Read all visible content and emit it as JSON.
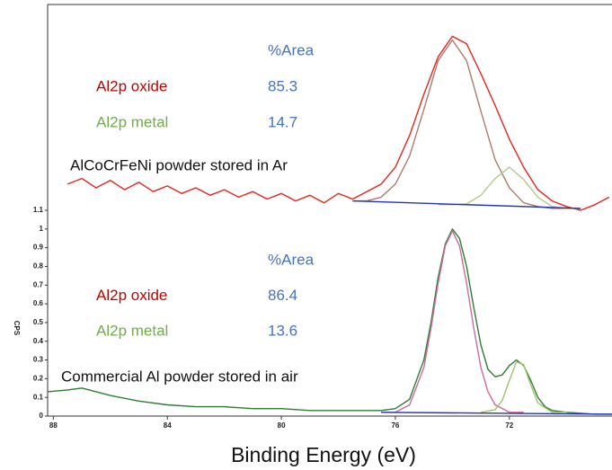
{
  "chart_data": {
    "type": "line",
    "xlabel": "Binding Energy (eV)",
    "ylabel": "CPS",
    "xlim": [
      88.2,
      68.4
    ],
    "xticks": [
      88,
      84,
      80,
      76,
      72
    ],
    "ylim": [
      0,
      2.2
    ],
    "yticks": [
      0,
      0.1,
      0.2,
      0.3,
      0.4,
      0.5,
      0.6,
      0.7,
      0.8,
      0.9,
      1,
      1.1
    ],
    "series": [
      {
        "color": "#e8241c",
        "x": [
          87.5,
          87,
          86.5,
          86,
          85.5,
          85,
          84.5,
          84,
          83.5,
          83,
          82.5,
          82,
          81.5,
          81,
          80.5,
          80,
          79.5,
          79,
          78.5,
          78,
          77.5,
          77,
          76.5,
          76,
          75.5,
          75,
          74.5,
          74,
          73.5,
          73,
          72.5,
          72,
          71.5,
          71,
          70.5,
          70,
          69.5,
          69,
          68.5
        ],
        "values": [
          1.24,
          1.27,
          1.22,
          1.26,
          1.21,
          1.25,
          1.2,
          1.23,
          1.19,
          1.22,
          1.18,
          1.21,
          1.17,
          1.2,
          1.16,
          1.19,
          1.15,
          1.18,
          1.14,
          1.19,
          1.16,
          1.2,
          1.24,
          1.33,
          1.5,
          1.72,
          1.92,
          2.03,
          1.99,
          1.83,
          1.66,
          1.48,
          1.33,
          1.21,
          1.15,
          1.12,
          1.1,
          1.13,
          1.17
        ]
      },
      {
        "color": "#b07a6f",
        "x": [
          77.5,
          77,
          76.5,
          76,
          75.5,
          75,
          74.5,
          74,
          73.5,
          73,
          72.5,
          72,
          71.5,
          71,
          70.5,
          70,
          69.5
        ],
        "values": [
          1.15,
          1.15,
          1.17,
          1.24,
          1.39,
          1.64,
          1.9,
          2.01,
          1.9,
          1.63,
          1.37,
          1.22,
          1.14,
          1.12,
          1.11,
          1.11,
          1.11
        ]
      },
      {
        "color": "#b5c98a",
        "x": [
          74.5,
          74,
          73.5,
          73,
          72.5,
          72,
          71.5,
          71,
          70.5,
          70,
          69.5
        ],
        "values": [
          1.13,
          1.13,
          1.134,
          1.18,
          1.27,
          1.33,
          1.265,
          1.17,
          1.12,
          1.11,
          1.11
        ]
      },
      {
        "color": "#2233bb",
        "x": [
          77.5,
          69.5
        ],
        "values": [
          1.15,
          1.11
        ]
      },
      {
        "color": "#2e7d32",
        "x": [
          88.2,
          87.5,
          87,
          86.5,
          86,
          85,
          84,
          83,
          82,
          81,
          80,
          79,
          78,
          77,
          76.5,
          76,
          75.5,
          75,
          74.75,
          74.5,
          74.25,
          74,
          73.75,
          73.5,
          73.25,
          73,
          72.75,
          72.5,
          72.25,
          72,
          71.75,
          71.5,
          71.25,
          71,
          70.75,
          70.5,
          70,
          69,
          68.4
        ],
        "values": [
          0.13,
          0.14,
          0.15,
          0.13,
          0.11,
          0.08,
          0.06,
          0.05,
          0.05,
          0.04,
          0.04,
          0.03,
          0.03,
          0.03,
          0.03,
          0.04,
          0.09,
          0.3,
          0.5,
          0.74,
          0.92,
          1.0,
          0.95,
          0.8,
          0.58,
          0.38,
          0.25,
          0.21,
          0.22,
          0.27,
          0.3,
          0.27,
          0.19,
          0.1,
          0.05,
          0.03,
          0.02,
          0.01,
          0.01
        ]
      },
      {
        "color": "#cc6a9a",
        "x": [
          76.5,
          76,
          75.5,
          75,
          74.75,
          74.5,
          74.25,
          74,
          73.75,
          73.5,
          73.25,
          73,
          72.75,
          72.5,
          72,
          71.5
        ],
        "values": [
          0.02,
          0.02,
          0.06,
          0.26,
          0.47,
          0.71,
          0.91,
          0.99,
          0.91,
          0.71,
          0.47,
          0.26,
          0.13,
          0.06,
          0.02,
          0.02
        ]
      },
      {
        "color": "#9cc36a",
        "x": [
          73,
          72.5,
          72.25,
          72,
          71.75,
          71.5,
          71.25,
          71,
          70.5,
          70
        ],
        "values": [
          0.02,
          0.034,
          0.084,
          0.19,
          0.29,
          0.275,
          0.166,
          0.07,
          0.02,
          0.02
        ]
      },
      {
        "color": "#2233bb",
        "x": [
          76.5,
          68.4
        ],
        "values": [
          0.02,
          0.01
        ]
      }
    ],
    "area_tables": [
      {
        "header": "%Area",
        "value_color": "#4472c4",
        "sample": "AlCoCrFeNi powder stored in Ar",
        "rows": [
          {
            "label": "Al2p oxide",
            "color": "#c00000",
            "value": 85.3
          },
          {
            "label": "Al2p metal",
            "color": "#70ad47",
            "value": 14.7
          }
        ]
      },
      {
        "header": "%Area",
        "value_color": "#4472c4",
        "sample": "Commercial Al powder stored in air",
        "rows": [
          {
            "label": "Al2p oxide",
            "color": "#c00000",
            "value": 86.4
          },
          {
            "label": "Al2p metal",
            "color": "#70ad47",
            "value": 13.6
          }
        ]
      }
    ]
  }
}
